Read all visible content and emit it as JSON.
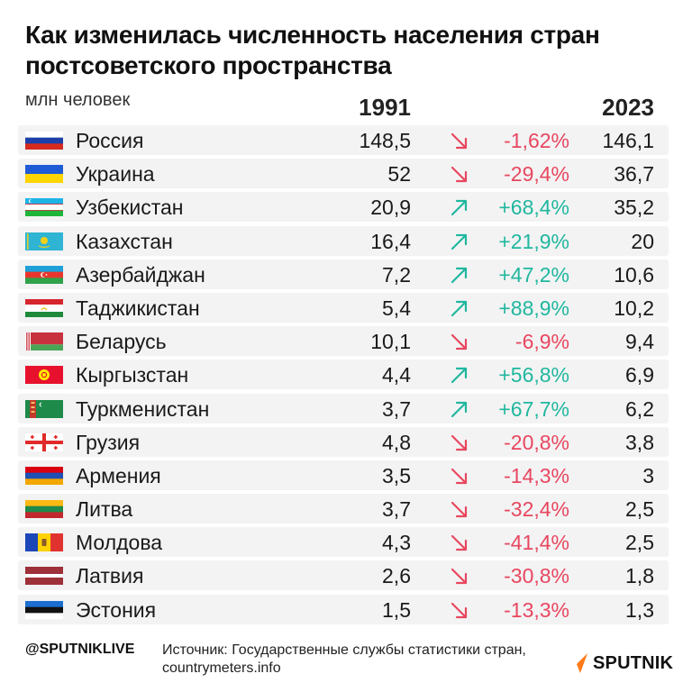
{
  "title": "Как изменилась численность населения стран постсоветского пространства",
  "units": "млн человек",
  "columns": {
    "year1": "1991",
    "year2": "2023"
  },
  "chart_data": {
    "type": "table",
    "title": "Как изменилась численность населения стран постсоветского пространства",
    "units": "млн человек",
    "columns": [
      "1991",
      "2023"
    ],
    "rows": [
      {
        "country": "Россия",
        "flag": "russia-flag",
        "v1991": "148,5",
        "change": "-1,62%",
        "dir": "down",
        "v2023": "146,1"
      },
      {
        "country": "Украина",
        "flag": "ukraine-flag",
        "v1991": "52",
        "change": "-29,4%",
        "dir": "down",
        "v2023": "36,7"
      },
      {
        "country": "Узбекистан",
        "flag": "uzbekistan-flag",
        "v1991": "20,9",
        "change": "+68,4%",
        "dir": "up",
        "v2023": "35,2"
      },
      {
        "country": "Казахстан",
        "flag": "kazakhstan-flag",
        "v1991": "16,4",
        "change": "+21,9%",
        "dir": "up",
        "v2023": "20"
      },
      {
        "country": "Азербайджан",
        "flag": "azerbaijan-flag",
        "v1991": "7,2",
        "change": "+47,2%",
        "dir": "up",
        "v2023": "10,6"
      },
      {
        "country": "Таджикистан",
        "flag": "tajikistan-flag",
        "v1991": "5,4",
        "change": "+88,9%",
        "dir": "up",
        "v2023": "10,2"
      },
      {
        "country": "Беларусь",
        "flag": "belarus-flag",
        "v1991": "10,1",
        "change": "-6,9%",
        "dir": "down",
        "v2023": "9,4"
      },
      {
        "country": "Кыргызстан",
        "flag": "kyrgyzstan-flag",
        "v1991": "4,4",
        "change": "+56,8%",
        "dir": "up",
        "v2023": "6,9"
      },
      {
        "country": "Туркменистан",
        "flag": "turkmenistan-flag",
        "v1991": "3,7",
        "change": "+67,7%",
        "dir": "up",
        "v2023": "6,2"
      },
      {
        "country": "Грузия",
        "flag": "georgia-flag",
        "v1991": "4,8",
        "change": "-20,8%",
        "dir": "down",
        "v2023": "3,8"
      },
      {
        "country": "Армения",
        "flag": "armenia-flag",
        "v1991": "3,5",
        "change": "-14,3%",
        "dir": "down",
        "v2023": "3"
      },
      {
        "country": "Литва",
        "flag": "lithuania-flag",
        "v1991": "3,7",
        "change": "-32,4%",
        "dir": "down",
        "v2023": "2,5"
      },
      {
        "country": "Молдова",
        "flag": "moldova-flag",
        "v1991": "4,3",
        "change": "-41,4%",
        "dir": "down",
        "v2023": "2,5"
      },
      {
        "country": "Латвия",
        "flag": "latvia-flag",
        "v1991": "2,6",
        "change": "-30,8%",
        "dir": "down",
        "v2023": "1,8"
      },
      {
        "country": "Эстония",
        "flag": "estonia-flag",
        "v1991": "1,5",
        "change": "-13,3%",
        "dir": "down",
        "v2023": "1,3"
      }
    ]
  },
  "colors": {
    "down": "#e8475f",
    "up": "#20b79e",
    "row_bg": "#f3f3f4",
    "logo": "#ff7a1a"
  },
  "footer": {
    "handle": "@SPUTNIKLIVE",
    "source": "Источник: Государственные службы статистики стран, countrymeters.info",
    "logo_text": "SPUTNIK"
  }
}
